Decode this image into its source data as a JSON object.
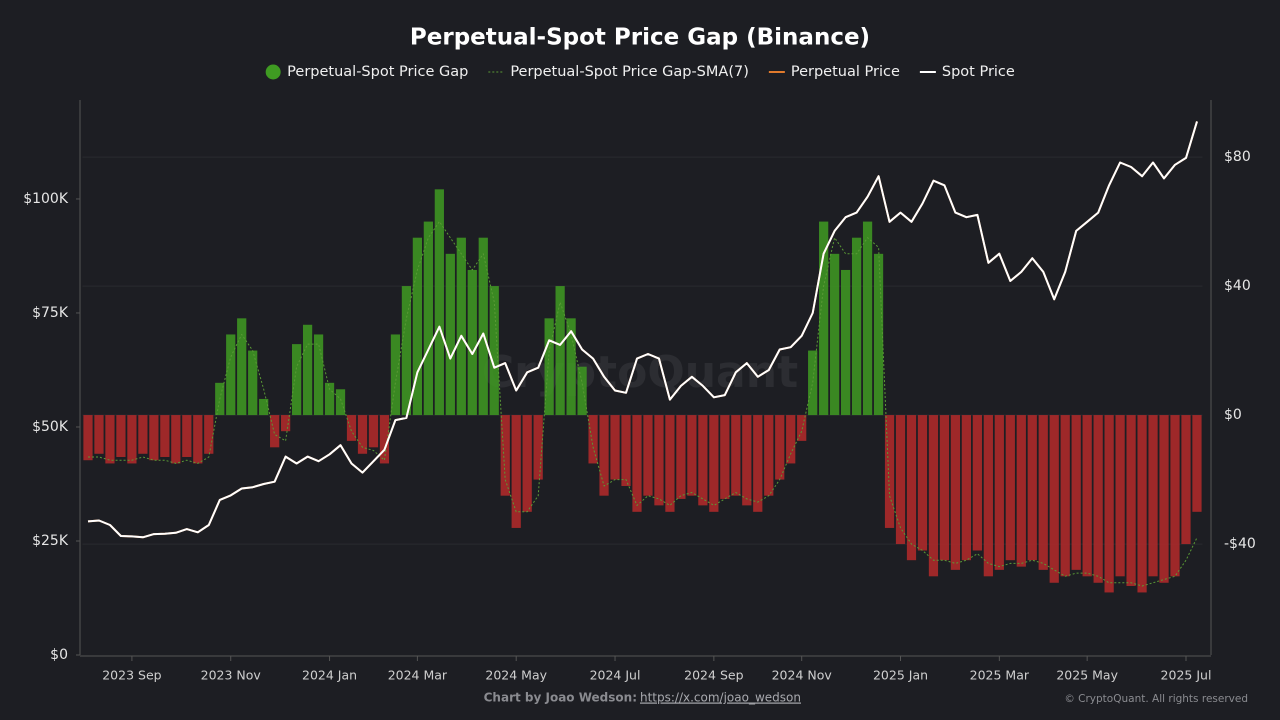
{
  "chart_data": {
    "type": "combo",
    "title": "Perpetual-Spot Price Gap (Binance)",
    "watermark": "CryptoQuant",
    "credit": "Chart by Joao Wedson:",
    "credit_link": "https://x.com/joao_wedson",
    "copyright": "© CryptoQuant. All rights reserved",
    "categories": [
      null,
      null,
      null,
      null,
      "2023 Sep",
      null,
      null,
      null,
      null,
      null,
      null,
      null,
      null,
      "2023 Nov",
      null,
      null,
      null,
      null,
      null,
      null,
      null,
      null,
      "2024 Jan",
      null,
      null,
      null,
      null,
      null,
      null,
      null,
      "2024 Mar",
      null,
      null,
      null,
      null,
      null,
      null,
      null,
      null,
      "2024 May",
      null,
      null,
      null,
      null,
      null,
      null,
      null,
      null,
      "2024 Jul",
      null,
      null,
      null,
      null,
      null,
      null,
      null,
      null,
      "2024 Sep",
      null,
      null,
      null,
      null,
      null,
      null,
      null,
      "2024 Nov",
      null,
      null,
      null,
      null,
      null,
      null,
      null,
      null,
      "2025 Jan",
      null,
      null,
      null,
      null,
      null,
      null,
      null,
      null,
      "2025 Mar",
      null,
      null,
      null,
      null,
      null,
      null,
      null,
      "2025 May",
      null,
      null,
      null,
      null,
      null,
      null,
      null,
      null,
      "2025 Jul",
      null
    ],
    "series": [
      {
        "name": "Perpetual-Spot Price Gap",
        "type": "bar",
        "axis": "y2",
        "color": "#3f9b22",
        "negative_color": "#b52a2a",
        "values": [
          -14,
          -12,
          -15,
          -13,
          -15,
          -12,
          -14,
          -13,
          -15,
          -13,
          -15,
          -12,
          10,
          25,
          30,
          20,
          5,
          -10,
          -5,
          22,
          28,
          25,
          10,
          8,
          -8,
          -12,
          -10,
          -15,
          25,
          40,
          55,
          60,
          70,
          50,
          55,
          45,
          55,
          40,
          -25,
          -35,
          -30,
          -20,
          30,
          40,
          30,
          15,
          -15,
          -25,
          -20,
          -22,
          -30,
          -25,
          -28,
          -30,
          -26,
          -25,
          -28,
          -30,
          -26,
          -25,
          -28,
          -30,
          -25,
          -20,
          -15,
          -8,
          20,
          60,
          50,
          45,
          55,
          60,
          50,
          -35,
          -40,
          -45,
          -42,
          -50,
          -45,
          -48,
          -45,
          -42,
          -50,
          -48,
          -45,
          -47,
          -45,
          -48,
          -52,
          -50,
          -48,
          -50,
          -52,
          -55,
          -50,
          -53,
          -55,
          -50,
          -52,
          -50,
          -40,
          -30
        ]
      },
      {
        "name": "Perpetual-Spot Price Gap-SMA(7)",
        "type": "line",
        "axis": "y2",
        "color": "#5a9a36",
        "dashed": true,
        "values": [
          -13,
          -13,
          -14,
          -14,
          -14,
          -13,
          -14,
          -14,
          -15,
          -14,
          -15,
          -13,
          5,
          18,
          25,
          20,
          8,
          -6,
          -8,
          15,
          22,
          22,
          8,
          5,
          -5,
          -10,
          -11,
          -14,
          10,
          30,
          45,
          55,
          60,
          55,
          50,
          45,
          50,
          35,
          -20,
          -30,
          -30,
          -25,
          20,
          35,
          25,
          10,
          -10,
          -22,
          -20,
          -20,
          -28,
          -25,
          -26,
          -28,
          -25,
          -24,
          -26,
          -28,
          -26,
          -24,
          -26,
          -27,
          -25,
          -20,
          -12,
          -5,
          10,
          40,
          55,
          50,
          50,
          55,
          52,
          -25,
          -35,
          -40,
          -42,
          -45,
          -45,
          -46,
          -45,
          -43,
          -46,
          -47,
          -46,
          -46,
          -45,
          -46,
          -48,
          -50,
          -49,
          -49,
          -50,
          -52,
          -52,
          -52,
          -53,
          -52,
          -51,
          -50,
          -45,
          -38
        ]
      },
      {
        "name": "Perpetual Price",
        "type": "line",
        "axis": "y",
        "color": "#e07a2c",
        "values": [
          29.3,
          29.5,
          28.5,
          26.1,
          26.0,
          25.8,
          26.5,
          26.6,
          26.8,
          27.6,
          26.9,
          28.5,
          34.0,
          35.0,
          36.5,
          36.8,
          37.5,
          38.0,
          43.5,
          42.0,
          43.5,
          42.5,
          44.0,
          46.0,
          42.0,
          40.0,
          42.5,
          45.0,
          51.5,
          52.0,
          62,
          67,
          72,
          65,
          70,
          66,
          70.5,
          63,
          64,
          58,
          62,
          63,
          69,
          68,
          71,
          67,
          65,
          61,
          58,
          57.5,
          65,
          66,
          65,
          56,
          59,
          61,
          59,
          56.5,
          57,
          62,
          64,
          61,
          62.5,
          67,
          67.5,
          70,
          75,
          88,
          93,
          96,
          97,
          100.5,
          105,
          95,
          97,
          95,
          99,
          104,
          103,
          97,
          96,
          96.5,
          86,
          88,
          82,
          84,
          87,
          84,
          78,
          84,
          93,
          95,
          97,
          103,
          108,
          107,
          105,
          108,
          104.5,
          107.5,
          109,
          117
        ]
      },
      {
        "name": "Spot Price",
        "type": "line",
        "axis": "y",
        "color": "#ffffff",
        "values": [
          29.3,
          29.5,
          28.5,
          26.1,
          26.0,
          25.8,
          26.5,
          26.6,
          26.8,
          27.6,
          26.9,
          28.5,
          34.0,
          35.0,
          36.5,
          36.8,
          37.5,
          38.0,
          43.5,
          42.0,
          43.5,
          42.5,
          44.0,
          46.0,
          42.0,
          40.0,
          42.5,
          45.0,
          51.5,
          52.0,
          62,
          67,
          72,
          65,
          70,
          66,
          70.5,
          63,
          64,
          58,
          62,
          63,
          69,
          68,
          71,
          67,
          65,
          61,
          58,
          57.5,
          65,
          66,
          65,
          56,
          59,
          61,
          59,
          56.5,
          57,
          62,
          64,
          61,
          62.5,
          67,
          67.5,
          70,
          75,
          88,
          93,
          96,
          97,
          100.5,
          105,
          95,
          97,
          95,
          99,
          104,
          103,
          97,
          96,
          96.5,
          86,
          88,
          82,
          84,
          87,
          84,
          78,
          84,
          93,
          95,
          97,
          103,
          108,
          107,
          105,
          108,
          104.5,
          107.5,
          109,
          117
        ]
      }
    ],
    "ylim": [
      0,
      121.7
    ],
    "yticks": [
      {
        "value": 0,
        "label": "$0"
      },
      {
        "value": 25,
        "label": "$25K"
      },
      {
        "value": 50,
        "label": "$50K"
      },
      {
        "value": 75,
        "label": "$75K"
      },
      {
        "value": 100,
        "label": "$100K"
      }
    ],
    "y2lim": [
      -74.4,
      97.7
    ],
    "y2ticks": [
      {
        "value": -40,
        "label": "-$40"
      },
      {
        "value": 0,
        "label": "$0"
      },
      {
        "value": 40,
        "label": "$40"
      },
      {
        "value": 80,
        "label": "$80"
      }
    ],
    "grid": true
  }
}
